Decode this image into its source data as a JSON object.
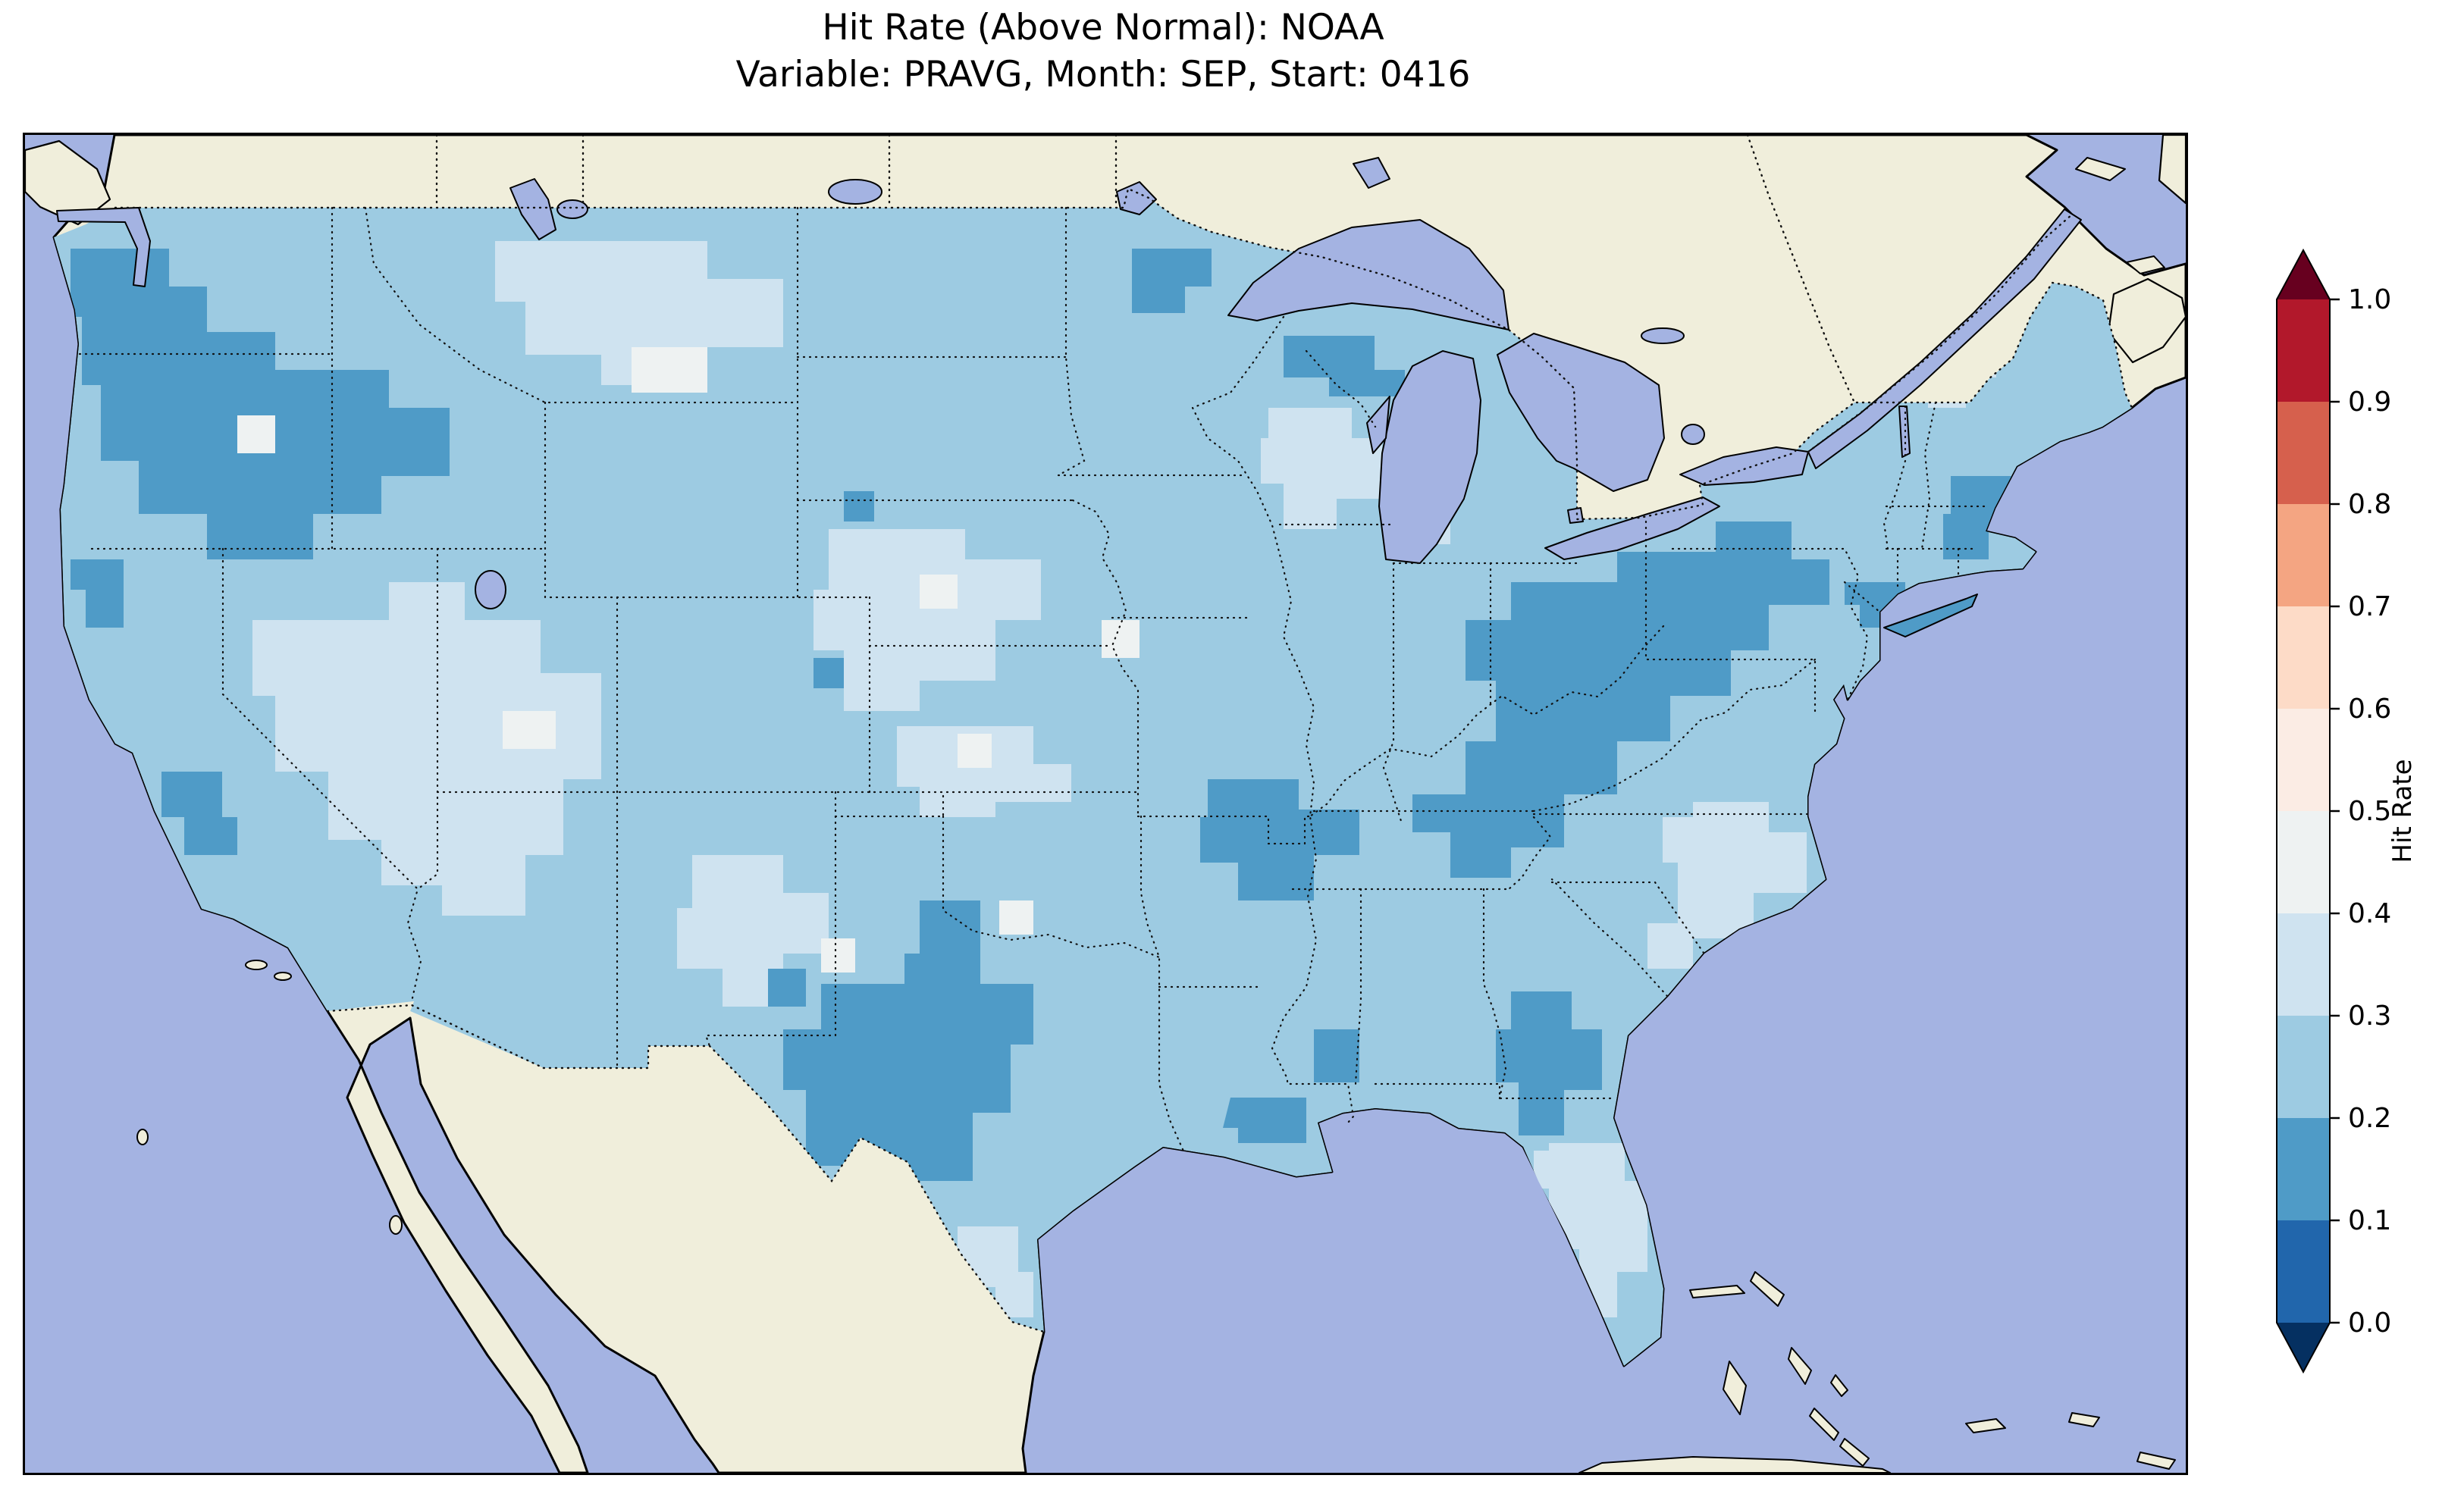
{
  "figure": {
    "title_line1": "Hit Rate (Above Normal): NOAA",
    "title_line2": "Variable: PRAVG, Month: SEP, Start: 0416"
  },
  "colorbar": {
    "label": "Hit Rate",
    "ticks_top_to_bottom": [
      "1.0",
      "0.9",
      "0.8",
      "0.7",
      "0.6",
      "0.5",
      "0.4",
      "0.3",
      "0.2",
      "0.1",
      "0.0"
    ],
    "segment_colors_top_to_bottom": [
      "#b2182b",
      "#d6604d",
      "#f4a582",
      "#fddbc7",
      "#fbece4",
      "#eef2f2",
      "#cfe3f0",
      "#9dcbe2",
      "#4f9bc7",
      "#2166ac"
    ],
    "over_color": "#67001f",
    "under_color": "#053061"
  },
  "map": {
    "colors": {
      "ocean": "#a4b3e2",
      "land": "#f0eedb",
      "lake": "#a4b3e2",
      "coastline": "#000000",
      "borders": "#111111",
      "hit_rate_0_1": "#2166ac",
      "hit_rate_0_2": "#4f9bc7",
      "hit_rate_0_3": "#9dcbe2",
      "hit_rate_0_4": "#cfe3f0",
      "hit_rate_0_5": "#eef2f2"
    },
    "base_bin": "0.3-0.4",
    "regions": [
      {
        "name": "pacific-northwest",
        "hit_rate": "0.2-0.3"
      },
      {
        "name": "northern-california-coast",
        "hit_rate": "0.2-0.3"
      },
      {
        "name": "central-california",
        "hit_rate": "0.2-0.3"
      },
      {
        "name": "upper-michigan-wisconsin",
        "hit_rate": "0.2-0.3"
      },
      {
        "name": "northern-minnesota",
        "hit_rate": "0.2-0.3"
      },
      {
        "name": "ohio-valley-appalachians",
        "hit_rate": "0.2-0.3"
      },
      {
        "name": "missouri-arkansas",
        "hit_rate": "0.2-0.3"
      },
      {
        "name": "central-texas",
        "hit_rate": "0.2-0.3"
      },
      {
        "name": "louisiana-mississippi",
        "hit_rate": "0.2-0.3"
      },
      {
        "name": "georgia",
        "hit_rate": "0.2-0.3"
      },
      {
        "name": "new-england-coast",
        "hit_rate": "0.2-0.3"
      },
      {
        "name": "new-york-new-jersey",
        "hit_rate": "0.2-0.3"
      },
      {
        "name": "great-basin-nevada-utah-arizona",
        "hit_rate": "0.4-0.5"
      },
      {
        "name": "central-montana",
        "hit_rate": "0.4-0.5"
      },
      {
        "name": "central-plains",
        "hit_rate": "0.4-0.5"
      },
      {
        "name": "new-mexico",
        "hit_rate": "0.4-0.5"
      },
      {
        "name": "wisconsin",
        "hit_rate": "0.4-0.5"
      },
      {
        "name": "southeast-coast",
        "hit_rate": "0.4-0.5"
      },
      {
        "name": "florida",
        "hit_rate": "0.4-0.5"
      },
      {
        "name": "scattered-cells-mt-or-ut-sd-mn-ks-ok-nm-fl",
        "hit_rate": "0.5-0.6"
      }
    ]
  },
  "chart_data": {
    "type": "heatmap",
    "title": "Hit Rate (Above Normal): NOAA",
    "subtitle": "Variable: PRAVG, Month: SEP, Start: 0416",
    "geography": "Contiguous United States (gridded cells), neighbors masked",
    "colormap": "RdBu reversed, discrete 0.1 bins, extended both ends",
    "colorbar_label": "Hit Rate",
    "colorbar_ticks": [
      0.0,
      0.1,
      0.2,
      0.3,
      0.4,
      0.5,
      0.6,
      0.7,
      0.8,
      0.9,
      1.0
    ],
    "dominant_bin": "0.3-0.4",
    "low_bins_observed": "0.2-0.3 patches in Pacific NW, Ohio Valley/Appalachians, central Texas, Ozarks, Georgia, New England coast",
    "high_bins_observed": "isolated 0.4-0.6 cells; no values above 0.6 on map"
  }
}
